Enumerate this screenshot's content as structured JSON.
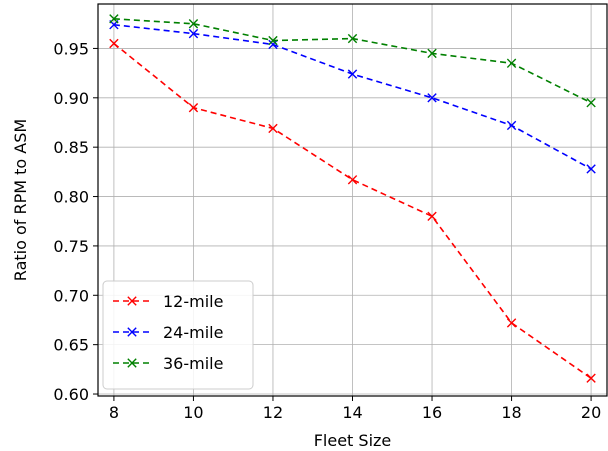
{
  "chart_data": {
    "type": "line",
    "title": "",
    "xlabel": "Fleet Size",
    "ylabel": "Ratio of RPM to ASM",
    "x": [
      8,
      10,
      12,
      14,
      16,
      18,
      20
    ],
    "x_ticks": [
      "8",
      "10",
      "12",
      "14",
      "16",
      "18",
      "20"
    ],
    "y_ticks": [
      "0.60",
      "0.65",
      "0.70",
      "0.75",
      "0.80",
      "0.85",
      "0.90",
      "0.95"
    ],
    "xlim": [
      7.6,
      20.4
    ],
    "ylim": [
      0.598,
      0.995
    ],
    "grid": true,
    "legend_position": "lower-left",
    "line_style": "dashed",
    "marker": "x",
    "series": [
      {
        "name": "12-mile",
        "color": "#ff0000",
        "values": [
          0.955,
          0.89,
          0.869,
          0.817,
          0.78,
          0.672,
          0.616
        ]
      },
      {
        "name": "24-mile",
        "color": "#0000ff",
        "values": [
          0.974,
          0.965,
          0.954,
          0.924,
          0.9,
          0.872,
          0.828
        ]
      },
      {
        "name": "36-mile",
        "color": "#008000",
        "values": [
          0.98,
          0.975,
          0.958,
          0.96,
          0.945,
          0.935,
          0.895
        ]
      }
    ]
  }
}
